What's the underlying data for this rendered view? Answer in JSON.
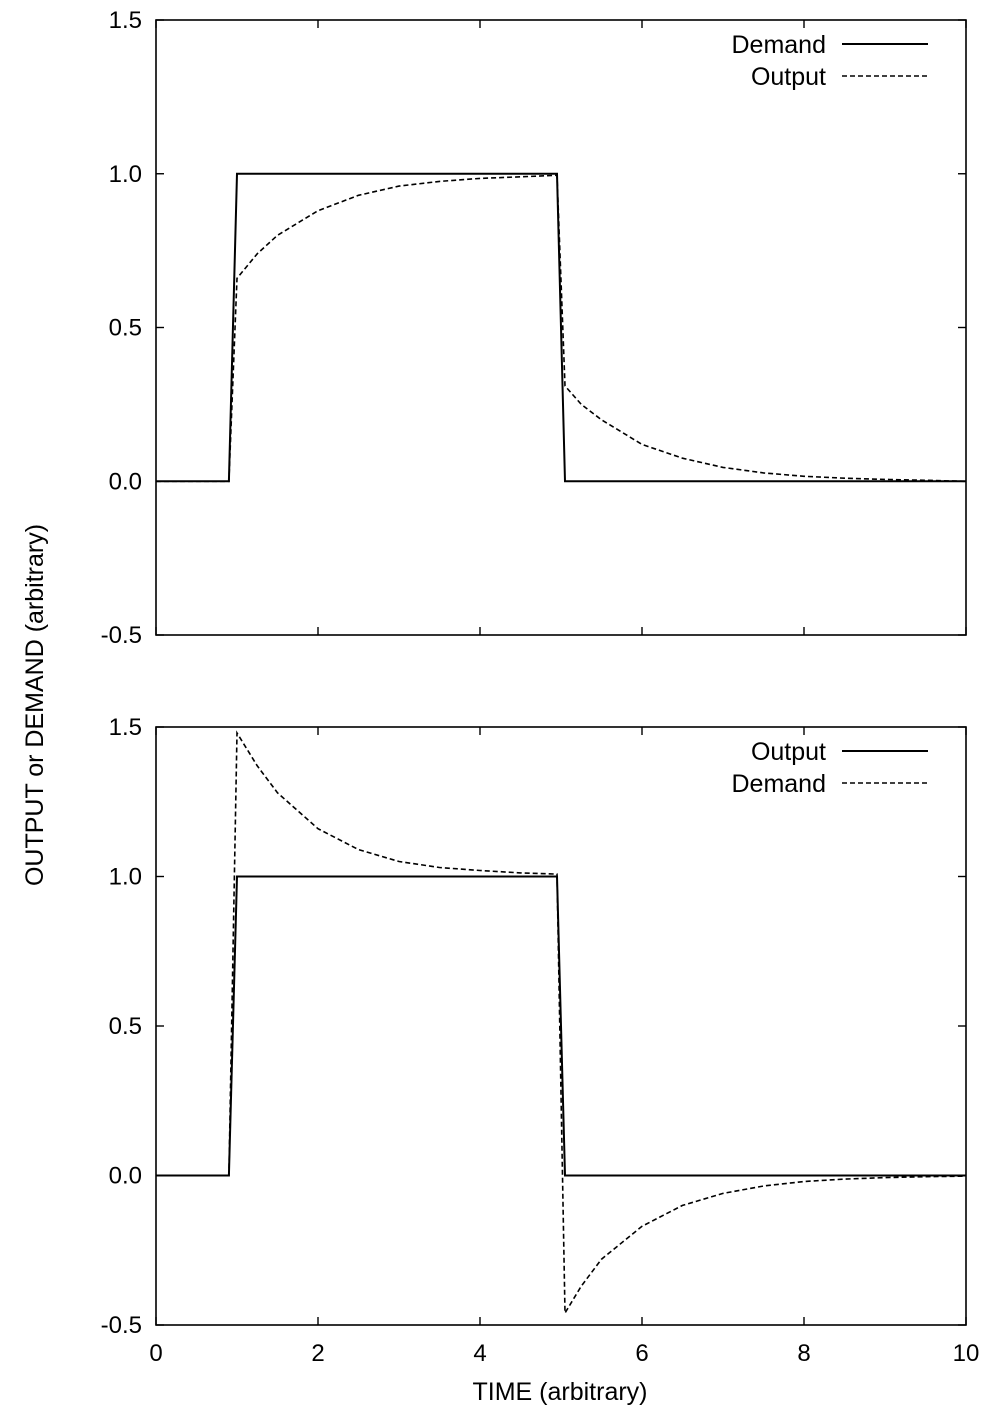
{
  "chart_data": [
    {
      "type": "line",
      "title": "",
      "xlabel": "",
      "ylabel": "OUTPUT or DEMAND (arbitrary)",
      "xlim": [
        0,
        10
      ],
      "ylim": [
        -0.5,
        1.5
      ],
      "xticks": [
        0,
        2,
        4,
        6,
        8,
        10
      ],
      "yticks": [
        "-0.5",
        "0.0",
        "0.5",
        "1.0",
        "1.5"
      ],
      "show_xtick_labels": false,
      "grid": false,
      "legend_position": "top-right",
      "series": [
        {
          "name": "Demand",
          "style": "solid",
          "x": [
            0,
            0.9,
            1.0,
            4.95,
            5.05,
            10
          ],
          "y": [
            0,
            0,
            1.0,
            1.0,
            0,
            0
          ]
        },
        {
          "name": "Output",
          "style": "dashed",
          "x": [
            0,
            0.9,
            1.0,
            1.25,
            1.5,
            2.0,
            2.5,
            3.0,
            3.5,
            4.0,
            4.5,
            4.95,
            5.05,
            5.25,
            5.5,
            6.0,
            6.5,
            7.0,
            7.5,
            8.0,
            8.5,
            9.0,
            9.5,
            10
          ],
          "y": [
            0,
            0,
            0.66,
            0.74,
            0.8,
            0.88,
            0.93,
            0.96,
            0.975,
            0.985,
            0.99,
            0.995,
            0.31,
            0.25,
            0.2,
            0.12,
            0.075,
            0.045,
            0.027,
            0.016,
            0.01,
            0.006,
            0.003,
            0.0
          ]
        }
      ]
    },
    {
      "type": "line",
      "title": "",
      "xlabel": "TIME (arbitrary)",
      "ylabel": "",
      "xlim": [
        0,
        10
      ],
      "ylim": [
        -0.5,
        1.5
      ],
      "xticks": [
        "0",
        "2",
        "4",
        "6",
        "8",
        "10"
      ],
      "yticks": [
        "-0.5",
        "0.0",
        "0.5",
        "1.0",
        "1.5"
      ],
      "show_xtick_labels": true,
      "grid": false,
      "legend_position": "top-right",
      "series": [
        {
          "name": "Output",
          "style": "solid",
          "x": [
            0,
            0.9,
            1.0,
            4.95,
            5.05,
            10
          ],
          "y": [
            0,
            0,
            1.0,
            1.0,
            0,
            0
          ]
        },
        {
          "name": "Demand",
          "style": "dashed",
          "x": [
            0,
            0.9,
            1.0,
            1.25,
            1.5,
            2.0,
            2.5,
            3.0,
            3.5,
            4.0,
            4.5,
            4.95,
            5.05,
            5.25,
            5.5,
            6.0,
            6.5,
            7.0,
            7.5,
            8.0,
            8.5,
            9.0,
            9.5,
            10
          ],
          "y": [
            0,
            0,
            1.48,
            1.37,
            1.28,
            1.16,
            1.09,
            1.05,
            1.03,
            1.02,
            1.012,
            1.008,
            -0.46,
            -0.37,
            -0.28,
            -0.17,
            -0.1,
            -0.06,
            -0.035,
            -0.02,
            -0.012,
            -0.007,
            -0.004,
            -0.002
          ]
        }
      ]
    }
  ]
}
